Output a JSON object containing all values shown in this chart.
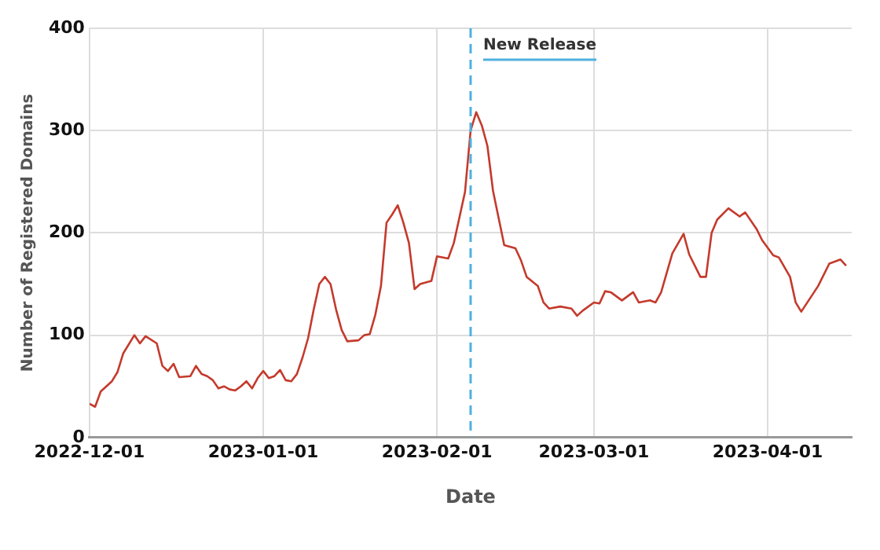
{
  "chart_data": {
    "type": "line",
    "xlabel": "Date",
    "ylabel": "Number of Registered Domains",
    "x": [
      "2022-12-01",
      "2022-12-02",
      "2022-12-03",
      "2022-12-05",
      "2022-12-06",
      "2022-12-07",
      "2022-12-09",
      "2022-12-10",
      "2022-12-11",
      "2022-12-13",
      "2022-12-14",
      "2022-12-15",
      "2022-12-16",
      "2022-12-17",
      "2022-12-19",
      "2022-12-20",
      "2022-12-21",
      "2022-12-22",
      "2022-12-23",
      "2022-12-24",
      "2022-12-25",
      "2022-12-26",
      "2022-12-27",
      "2022-12-28",
      "2022-12-29",
      "2022-12-30",
      "2022-12-31",
      "2023-01-01",
      "2023-01-02",
      "2023-01-03",
      "2023-01-04",
      "2023-01-05",
      "2023-01-06",
      "2023-01-07",
      "2023-01-08",
      "2023-01-09",
      "2023-01-10",
      "2023-01-11",
      "2023-01-12",
      "2023-01-13",
      "2023-01-14",
      "2023-01-15",
      "2023-01-16",
      "2023-01-18",
      "2023-01-19",
      "2023-01-20",
      "2023-01-21",
      "2023-01-22",
      "2023-01-23",
      "2023-01-24",
      "2023-01-25",
      "2023-01-26",
      "2023-01-27",
      "2023-01-28",
      "2023-01-29",
      "2023-01-31",
      "2023-02-01",
      "2023-02-03",
      "2023-02-04",
      "2023-02-06",
      "2023-02-07",
      "2023-02-08",
      "2023-02-09",
      "2023-02-10",
      "2023-02-11",
      "2023-02-13",
      "2023-02-15",
      "2023-02-16",
      "2023-02-17",
      "2023-02-19",
      "2023-02-20",
      "2023-02-21",
      "2023-02-23",
      "2023-02-25",
      "2023-02-26",
      "2023-02-27",
      "2023-03-01",
      "2023-03-02",
      "2023-03-03",
      "2023-03-04",
      "2023-03-06",
      "2023-03-08",
      "2023-03-09",
      "2023-03-11",
      "2023-03-12",
      "2023-03-13",
      "2023-03-15",
      "2023-03-17",
      "2023-03-18",
      "2023-03-20",
      "2023-03-21",
      "2023-03-22",
      "2023-03-23",
      "2023-03-25",
      "2023-03-27",
      "2023-03-28",
      "2023-03-30",
      "2023-03-31",
      "2023-04-02",
      "2023-04-03",
      "2023-04-05",
      "2023-04-06",
      "2023-04-07",
      "2023-04-10",
      "2023-04-12",
      "2023-04-14",
      "2023-04-15"
    ],
    "series": [
      {
        "color": "#c43a2c",
        "values": [
          33,
          30,
          45,
          55,
          64,
          82,
          100,
          92,
          99,
          92,
          70,
          65,
          72,
          59,
          60,
          70,
          62,
          60,
          56,
          48,
          50,
          47,
          46,
          50,
          55,
          48,
          58,
          65,
          58,
          60,
          66,
          56,
          55,
          62,
          78,
          97,
          125,
          150,
          157,
          150,
          125,
          105,
          94,
          95,
          100,
          101,
          120,
          148,
          210,
          218,
          227,
          210,
          190,
          145,
          150,
          153,
          177,
          175,
          190,
          240,
          300,
          318,
          305,
          285,
          241,
          188,
          185,
          173,
          157,
          148,
          132,
          126,
          128,
          126,
          119,
          124,
          132,
          131,
          143,
          142,
          134,
          142,
          132,
          134,
          132,
          142,
          180,
          199,
          179,
          157,
          157,
          200,
          213,
          224,
          216,
          220,
          204,
          193,
          178,
          176,
          157,
          132,
          123,
          148,
          170,
          174,
          168
        ]
      }
    ],
    "xlim": [
      "2022-12-01",
      "2023-04-16"
    ],
    "xticks": [
      "2022-12-01",
      "2023-01-01",
      "2023-02-01",
      "2023-03-01",
      "2023-04-01"
    ],
    "ylim": [
      0,
      400
    ],
    "yticks": [
      0,
      100,
      200,
      300,
      400
    ],
    "grid": true,
    "legend": false,
    "marker": "none",
    "line_style": "solid",
    "ref_lines": [
      {
        "axis": "x",
        "value": "2023-02-07",
        "label": "New Release",
        "color": "#4fb0e0",
        "line_style": "dashed"
      }
    ]
  }
}
